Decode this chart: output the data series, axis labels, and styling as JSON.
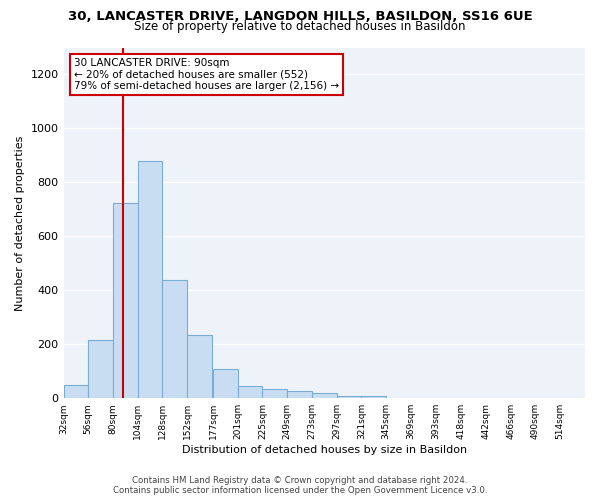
{
  "title_line1": "30, LANCASTER DRIVE, LANGDON HILLS, BASILDON, SS16 6UE",
  "title_line2": "Size of property relative to detached houses in Basildon",
  "xlabel": "Distribution of detached houses by size in Basildon",
  "ylabel": "Number of detached properties",
  "footer": "Contains HM Land Registry data © Crown copyright and database right 2024.\nContains public sector information licensed under the Open Government Licence v3.0.",
  "annotation_line1": "30 LANCASTER DRIVE: 90sqm",
  "annotation_line2": "← 20% of detached houses are smaller (552)",
  "annotation_line3": "79% of semi-detached houses are larger (2,156) →",
  "bar_color": "#c9ddf2",
  "bar_edge_color": "#7aadd4",
  "vline_color": "#cc0000",
  "vline_x": 90,
  "categories": [
    "32sqm",
    "56sqm",
    "80sqm",
    "104sqm",
    "128sqm",
    "152sqm",
    "177sqm",
    "201sqm",
    "225sqm",
    "249sqm",
    "273sqm",
    "297sqm",
    "321sqm",
    "345sqm",
    "369sqm",
    "393sqm",
    "418sqm",
    "442sqm",
    "466sqm",
    "490sqm",
    "514sqm"
  ],
  "bin_edges": [
    32,
    56,
    80,
    104,
    128,
    152,
    177,
    201,
    225,
    249,
    273,
    297,
    321,
    345,
    369,
    393,
    418,
    442,
    466,
    490,
    514
  ],
  "bin_width": 24,
  "values": [
    50,
    215,
    725,
    880,
    440,
    235,
    110,
    47,
    35,
    28,
    20,
    10,
    10,
    0,
    0,
    0,
    0,
    0,
    0,
    0,
    0
  ],
  "ylim": [
    0,
    1300
  ],
  "yticks": [
    0,
    200,
    400,
    600,
    800,
    1000,
    1200
  ],
  "background_color": "#eef2f9",
  "grid_color": "#ffffff",
  "ann_box_facecolor": "#ffffff",
  "ann_box_edgecolor": "#cc0000"
}
